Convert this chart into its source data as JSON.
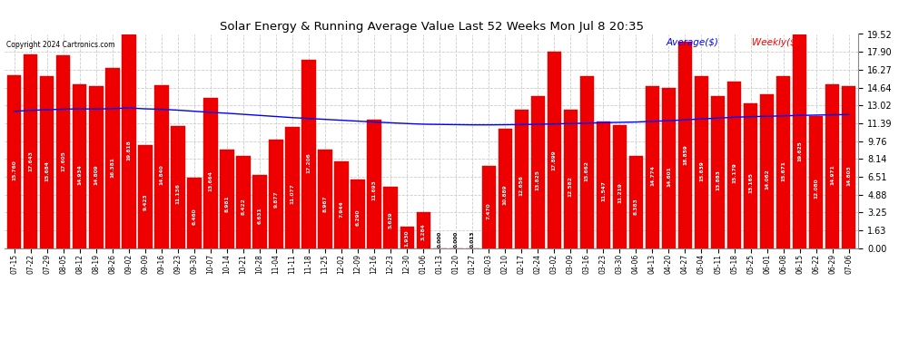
{
  "title": "Solar Energy & Running Average Value Last 52 Weeks Mon Jul 8 20:35",
  "copyright": "Copyright 2024 Cartronics.com",
  "bar_color": "#ee0000",
  "bar_edge_color": "#cc0000",
  "avg_line_color": "blue",
  "weekly_label_color": "red",
  "avg_label_color": "blue",
  "background_color": "#ffffff",
  "grid_color": "#cccccc",
  "ylabel_right": [
    "19.52",
    "17.90",
    "16.27",
    "14.64",
    "13.02",
    "11.39",
    "9.76",
    "8.14",
    "6.51",
    "4.88",
    "3.25",
    "1.63",
    "0.00"
  ],
  "ylim": [
    0,
    19.52
  ],
  "categories": [
    "07-15",
    "07-22",
    "07-29",
    "08-05",
    "08-12",
    "08-19",
    "08-26",
    "09-02",
    "09-09",
    "09-16",
    "09-23",
    "09-30",
    "10-07",
    "10-14",
    "10-21",
    "10-28",
    "11-04",
    "11-11",
    "11-18",
    "11-25",
    "12-02",
    "12-09",
    "12-16",
    "12-23",
    "12-30",
    "01-06",
    "01-13",
    "01-20",
    "01-27",
    "02-03",
    "02-10",
    "02-17",
    "02-24",
    "03-02",
    "03-09",
    "03-16",
    "03-23",
    "03-30",
    "04-06",
    "04-13",
    "04-20",
    "04-27",
    "05-04",
    "05-11",
    "05-18",
    "05-25",
    "06-01",
    "06-08",
    "06-15",
    "06-22",
    "06-29",
    "07-06"
  ],
  "weekly_values": [
    15.76,
    17.643,
    15.684,
    17.605,
    14.934,
    14.809,
    16.381,
    19.818,
    9.423,
    14.84,
    11.136,
    6.46,
    13.664,
    8.981,
    8.422,
    6.631,
    9.877,
    11.077,
    17.206,
    8.967,
    7.944,
    6.29,
    11.693,
    5.629,
    1.93,
    3.284,
    0.0,
    0.0,
    0.013,
    7.47,
    10.889,
    12.656,
    13.825,
    17.899,
    12.582,
    15.662,
    11.547,
    11.219,
    8.383,
    14.774,
    14.601,
    18.859,
    15.639,
    13.883,
    15.179,
    13.165,
    14.062,
    15.671,
    19.625,
    12.08,
    14.971,
    14.803
  ],
  "avg_values": [
    12.48,
    12.56,
    12.62,
    12.67,
    12.7,
    12.68,
    12.72,
    12.78,
    12.7,
    12.66,
    12.58,
    12.48,
    12.38,
    12.3,
    12.2,
    12.1,
    12.0,
    11.9,
    11.82,
    11.74,
    11.66,
    11.58,
    11.5,
    11.43,
    11.36,
    11.3,
    11.28,
    11.26,
    11.24,
    11.24,
    11.25,
    11.27,
    11.29,
    11.33,
    11.36,
    11.4,
    11.44,
    11.47,
    11.5,
    11.56,
    11.62,
    11.7,
    11.78,
    11.86,
    11.93,
    11.99,
    12.02,
    12.06,
    12.1,
    12.13,
    12.16,
    12.18
  ]
}
